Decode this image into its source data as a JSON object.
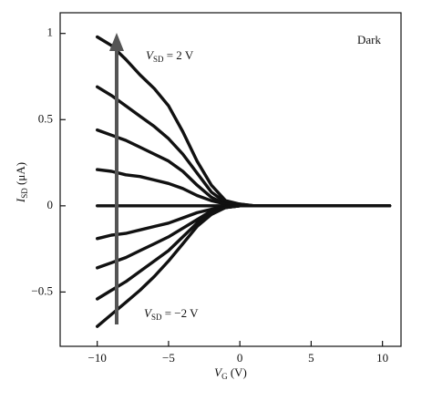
{
  "chart_data": {
    "type": "line",
    "x": [
      -10,
      -9,
      -8,
      -7,
      -6,
      -5,
      -4,
      -3,
      -2,
      -1,
      0,
      1,
      2,
      4,
      6,
      8,
      10.5
    ],
    "series": [
      {
        "color": "#111111",
        "values": [
          0.98,
          0.93,
          0.85,
          0.76,
          0.68,
          0.58,
          0.43,
          0.26,
          0.12,
          0.03,
          0.01,
          0,
          0,
          0,
          0,
          0,
          0
        ]
      },
      {
        "color": "#111111",
        "values": [
          0.69,
          0.64,
          0.58,
          0.52,
          0.46,
          0.39,
          0.3,
          0.19,
          0.08,
          0.02,
          0.01,
          0,
          0,
          0,
          0,
          0,
          0
        ]
      },
      {
        "color": "#111111",
        "values": [
          0.44,
          0.41,
          0.38,
          0.34,
          0.3,
          0.26,
          0.2,
          0.12,
          0.05,
          0.01,
          0,
          0,
          0,
          0,
          0,
          0,
          0
        ]
      },
      {
        "color": "#111111",
        "values": [
          0.21,
          0.2,
          0.18,
          0.17,
          0.15,
          0.13,
          0.1,
          0.06,
          0.03,
          0.01,
          0,
          0,
          0,
          0,
          0,
          0,
          0
        ]
      },
      {
        "color": "#111111",
        "values": [
          0,
          0,
          0,
          0,
          0,
          0,
          0,
          0,
          0,
          0,
          0,
          0,
          0,
          0,
          0,
          0,
          0
        ]
      },
      {
        "color": "#111111",
        "values": [
          -0.19,
          -0.17,
          -0.16,
          -0.14,
          -0.12,
          -0.1,
          -0.07,
          -0.04,
          -0.02,
          -0.01,
          0,
          0,
          0,
          0,
          0,
          0,
          0
        ]
      },
      {
        "color": "#111111",
        "values": [
          -0.36,
          -0.33,
          -0.3,
          -0.26,
          -0.22,
          -0.18,
          -0.13,
          -0.08,
          -0.03,
          -0.01,
          0,
          0,
          0,
          0,
          0,
          0,
          0
        ]
      },
      {
        "color": "#111111",
        "values": [
          -0.54,
          -0.49,
          -0.44,
          -0.38,
          -0.32,
          -0.26,
          -0.18,
          -0.1,
          -0.04,
          -0.01,
          0,
          0,
          0,
          0,
          0,
          0,
          0
        ]
      },
      {
        "color": "#111111",
        "values": [
          -0.7,
          -0.63,
          -0.56,
          -0.49,
          -0.41,
          -0.32,
          -0.22,
          -0.12,
          -0.05,
          -0.01,
          0,
          0,
          0,
          0,
          0,
          0,
          0
        ]
      }
    ],
    "xlim": [
      -12.6,
      11.3
    ],
    "ylim": [
      -0.815,
      1.12
    ],
    "xticks": [
      {
        "value": -10,
        "label": "−10"
      },
      {
        "value": -5,
        "label": "−5"
      },
      0,
      5,
      10
    ],
    "yticks": [
      {
        "value": -0.5,
        "label": "−0.5"
      },
      0,
      0.5,
      1
    ],
    "xlabel": {
      "main": "V",
      "sub": "G",
      "rest": " (V)"
    },
    "ylabel": {
      "main": "I",
      "sub": "SD",
      "rest": " (μA)"
    },
    "annotations": [
      {
        "main": "V",
        "sub": "SD",
        "rest": " = 2 V"
      },
      {
        "main": "V",
        "sub": "SD",
        "rest": " = −2 V"
      },
      "Dark"
    ]
  }
}
